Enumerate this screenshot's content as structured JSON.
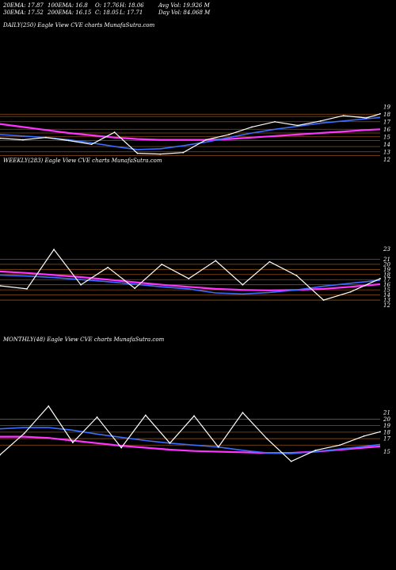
{
  "header": {
    "ema20": "20EMA: 17.87",
    "ema100": "100EMA: 16.8",
    "open": "O: 17.76",
    "high": "H: 18.06",
    "avgvol": "Avg Vol: 19.926  M",
    "ema30": "30EMA: 17.52",
    "ema200": "200EMA: 16.15",
    "close": "C: 18.05",
    "low": "L: 17.71",
    "dayvol": "Day Vol: 84.068 M"
  },
  "colors": {
    "background": "#000000",
    "price": "#ffffff",
    "ema_short": "#3a6cff",
    "ema_long": "#ff33ff",
    "support_lines": "#b5651d"
  },
  "chart_data": [
    {
      "panel": "daily",
      "type": "line",
      "title": "DAILY(250) Eagle  View  CVE charts MunafaSutra.com",
      "y_ticks": [
        19,
        18,
        17,
        16,
        15,
        14,
        13,
        12
      ],
      "ylim": [
        11.5,
        19.5
      ],
      "x": [
        0,
        15,
        30,
        45,
        60,
        75,
        90,
        105,
        120,
        135,
        150,
        165,
        180,
        195,
        210,
        225,
        240,
        249
      ],
      "price": [
        14.8,
        14.6,
        14.9,
        14.5,
        14.0,
        15.6,
        12.8,
        12.7,
        12.9,
        14.6,
        15.3,
        16.3,
        17.0,
        16.5,
        17.1,
        17.8,
        17.5,
        18.05
      ],
      "ema_short": [
        15.3,
        15.1,
        14.9,
        14.6,
        14.2,
        13.7,
        13.3,
        13.4,
        13.8,
        14.3,
        14.9,
        15.5,
        16.0,
        16.4,
        16.8,
        17.1,
        17.4,
        17.55
      ],
      "ema_long": [
        16.7,
        16.3,
        15.9,
        15.5,
        15.2,
        14.9,
        14.7,
        14.6,
        14.6,
        14.6,
        14.7,
        14.9,
        15.1,
        15.3,
        15.5,
        15.7,
        15.9,
        16.0
      ],
      "support_levels": [
        18.0,
        17.7,
        17.0,
        16.0,
        15.5,
        15.0,
        14.5,
        13.7,
        13.0,
        12.5
      ]
    },
    {
      "panel": "weekly",
      "type": "line",
      "title": "WEEKLY(283) Eagle  View  CVE charts MunafaSutra.com",
      "y_ticks": [
        23,
        21,
        20,
        19,
        18,
        17,
        16,
        15,
        14,
        13,
        12
      ],
      "ylim": [
        11,
        24
      ],
      "x": [
        0,
        20,
        40,
        60,
        80,
        100,
        120,
        140,
        160,
        180,
        200,
        220,
        240,
        260,
        282
      ],
      "price": [
        15.8,
        15.2,
        22.9,
        16.0,
        19.4,
        15.3,
        20.0,
        17.2,
        20.7,
        16.0,
        20.5,
        17.8,
        13.0,
        14.6,
        17.2
      ],
      "ema_short": [
        17.9,
        17.7,
        17.4,
        17.0,
        16.6,
        16.1,
        15.6,
        15.2,
        14.4,
        14.2,
        14.5,
        15.0,
        15.7,
        16.3,
        16.9
      ],
      "ema_long": [
        18.6,
        18.3,
        17.9,
        17.5,
        17.0,
        16.5,
        16.0,
        15.6,
        15.2,
        15.0,
        14.9,
        15.0,
        15.2,
        15.6,
        16.1
      ],
      "support_levels": [
        21.0,
        20.0,
        19.0,
        18.0,
        17.0,
        16.0,
        15.0,
        14.0,
        13.0
      ]
    },
    {
      "panel": "monthly",
      "type": "line",
      "title": "MONTHLY(48) Eagle  View  CVE charts MunafaSutra.com",
      "y_ticks": [
        21,
        20,
        19,
        18,
        17,
        15
      ],
      "ylim": [
        12.5,
        22
      ],
      "x": [
        0,
        3,
        6,
        9,
        12,
        15,
        18,
        21,
        24,
        27,
        30,
        33,
        36,
        39,
        42,
        45,
        47
      ],
      "price": [
        14.5,
        17.8,
        22.0,
        16.4,
        20.3,
        15.6,
        20.6,
        16.3,
        20.5,
        15.7,
        21.0,
        17.0,
        13.5,
        15.2,
        16.0,
        17.4,
        18.05
      ],
      "ema_short": [
        18.5,
        18.7,
        18.7,
        18.3,
        17.7,
        17.2,
        16.7,
        16.3,
        16.0,
        15.7,
        15.2,
        14.8,
        14.7,
        15.0,
        15.4,
        15.8,
        16.1
      ],
      "ema_long": [
        17.3,
        17.3,
        17.1,
        16.7,
        16.3,
        15.9,
        15.6,
        15.3,
        15.1,
        15.0,
        14.9,
        14.8,
        14.8,
        15.0,
        15.3,
        15.6,
        15.8
      ],
      "support_levels": [
        20.0,
        19.0,
        18.0,
        17.0,
        16.0
      ]
    }
  ]
}
